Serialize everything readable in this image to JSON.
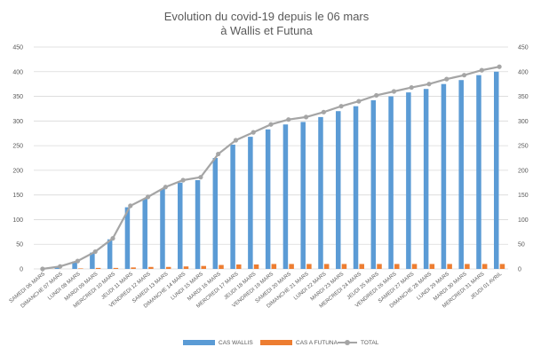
{
  "chart_data": {
    "type": "bar",
    "title": "Evolution du covid-19 depuis le 06 mars",
    "subtitle": "à Wallis et Futuna",
    "categories": [
      "SAMEDI 06 MARS",
      "DIMANCHE 07 MARS",
      "LUNDI 08 MARS",
      "MARDI 09 MARS",
      "MERCREDI 10 MARS",
      "JEUDI 11 MARS",
      "VENDREDI 12 MARS",
      "SAMEDI 13 MARS",
      "DIMANCHE 14 MARS",
      "LUNDI 15 MARS",
      "MARDI 16 MARS",
      "MERCREDI 17 MARS",
      "JEUDI 18 MARS",
      "VENDREDI 19 MARS",
      "SAMEDI 20 MARS",
      "DIMANCHE 21 MARS",
      "LUNDI 22 MARS",
      "MARDI 23 MARS",
      "MERCREDI 24 MARS",
      "JEUDI 25 MARS",
      "VENDREDI 26 MARS",
      "SAMEDI 27 MARS",
      "DIMANCHE 28 MARS",
      "LUNDI 29 MARS",
      "MARDI 30 MARS",
      "MERCREDI 31 MARS",
      "JEUDI 01 AVRIL"
    ],
    "series": [
      {
        "name": "CAS WALLIS",
        "type": "bar",
        "color": "#5b9bd5",
        "values": [
          0,
          5,
          15,
          33,
          60,
          125,
          142,
          162,
          175,
          180,
          225,
          252,
          268,
          283,
          293,
          298,
          308,
          320,
          330,
          342,
          350,
          358,
          365,
          375,
          383,
          393,
          400
        ]
      },
      {
        "name": "CAS A FUTUNA",
        "type": "bar",
        "color": "#ed7d31",
        "values": [
          0,
          0,
          1,
          2,
          2,
          3,
          4,
          4,
          5,
          6,
          8,
          9,
          9,
          10,
          10,
          10,
          10,
          10,
          10,
          10,
          10,
          10,
          10,
          10,
          10,
          10,
          10
        ]
      },
      {
        "name": "TOTAL",
        "type": "line",
        "color": "#a5a5a5",
        "values": [
          0,
          5,
          16,
          35,
          62,
          128,
          146,
          166,
          180,
          186,
          233,
          261,
          277,
          293,
          303,
          308,
          318,
          330,
          340,
          352,
          360,
          368,
          375,
          385,
          393,
          403,
          410
        ]
      }
    ],
    "ylim": [
      0,
      450
    ],
    "yticks": [
      0,
      50,
      100,
      150,
      200,
      250,
      300,
      350,
      400,
      450
    ],
    "secondary_axis": true,
    "legend_position": "bottom",
    "grid": true
  }
}
